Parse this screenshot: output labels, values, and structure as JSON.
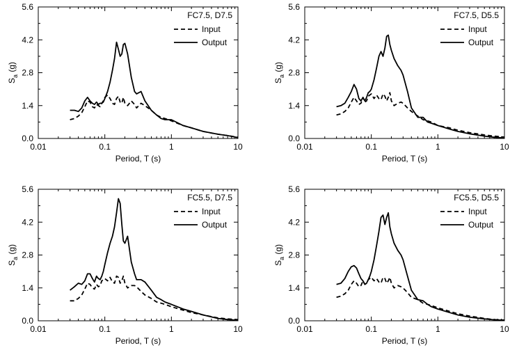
{
  "chart_data": [
    {
      "type": "line",
      "title": "",
      "xlabel": "Period, T (s)",
      "ylabel_main": "S",
      "ylabel_sub": "a",
      "ylabel_unit": "(g)",
      "xscale": "log",
      "xlim": [
        0.01,
        10
      ],
      "ylim": [
        0,
        5.6
      ],
      "xticks": [
        "0.01",
        "0.1",
        "1",
        "10"
      ],
      "yticks": [
        "0.0",
        "1.4",
        "2.8",
        "4.2",
        "5.6"
      ],
      "legend_title": "FC7.5, D7.5",
      "legend_placement": "top-right",
      "grid": false,
      "series": [
        {
          "name": "Input",
          "style": "dashed",
          "x": [
            0.03,
            0.035,
            0.04,
            0.045,
            0.05,
            0.055,
            0.06,
            0.065,
            0.07,
            0.075,
            0.08,
            0.085,
            0.09,
            0.095,
            0.1,
            0.11,
            0.12,
            0.13,
            0.14,
            0.15,
            0.16,
            0.17,
            0.18,
            0.19,
            0.2,
            0.22,
            0.25,
            0.28,
            0.3,
            0.35,
            0.4,
            0.5,
            0.6,
            0.7,
            0.8,
            1.0,
            1.5,
            2,
            3,
            5,
            7,
            10
          ],
          "y": [
            0.8,
            0.85,
            0.95,
            1.1,
            1.35,
            1.6,
            1.55,
            1.35,
            1.3,
            1.45,
            1.4,
            1.35,
            1.5,
            1.6,
            1.75,
            1.85,
            1.7,
            1.5,
            1.45,
            1.7,
            1.8,
            1.55,
            1.5,
            1.75,
            1.5,
            1.4,
            1.6,
            1.45,
            1.3,
            1.5,
            1.4,
            1.2,
            1.0,
            0.9,
            0.85,
            0.75,
            0.55,
            0.45,
            0.3,
            0.18,
            0.12,
            0.05
          ]
        },
        {
          "name": "Output",
          "style": "solid",
          "x": [
            0.03,
            0.035,
            0.04,
            0.045,
            0.05,
            0.055,
            0.06,
            0.065,
            0.07,
            0.075,
            0.08,
            0.085,
            0.09,
            0.095,
            0.1,
            0.11,
            0.12,
            0.13,
            0.14,
            0.15,
            0.16,
            0.17,
            0.18,
            0.19,
            0.2,
            0.22,
            0.25,
            0.28,
            0.3,
            0.35,
            0.4,
            0.5,
            0.6,
            0.7,
            0.8,
            1.0,
            1.5,
            2,
            3,
            5,
            7,
            10
          ],
          "y": [
            1.2,
            1.2,
            1.15,
            1.3,
            1.6,
            1.75,
            1.6,
            1.5,
            1.45,
            1.55,
            1.45,
            1.5,
            1.5,
            1.55,
            1.7,
            2.0,
            2.4,
            2.9,
            3.4,
            4.1,
            3.8,
            3.5,
            3.6,
            4.0,
            4.05,
            3.6,
            2.6,
            2.0,
            1.9,
            2.0,
            1.6,
            1.2,
            1.0,
            0.85,
            0.8,
            0.8,
            0.55,
            0.45,
            0.3,
            0.18,
            0.12,
            0.04
          ]
        }
      ]
    },
    {
      "type": "line",
      "title": "",
      "xlabel": "Period, T (s)",
      "ylabel_main": "S",
      "ylabel_sub": "a",
      "ylabel_unit": "(g)",
      "xscale": "log",
      "xlim": [
        0.01,
        10
      ],
      "ylim": [
        0,
        5.6
      ],
      "xticks": [
        "0.01",
        "0.1",
        "1",
        "10"
      ],
      "yticks": [
        "0.0",
        "1.4",
        "2.8",
        "4.2",
        "5.6"
      ],
      "legend_title": "FC7.5, D5.5",
      "legend_placement": "top-right",
      "grid": false,
      "series": [
        {
          "name": "Input",
          "style": "dashed",
          "x": [
            0.03,
            0.035,
            0.04,
            0.045,
            0.05,
            0.055,
            0.06,
            0.065,
            0.07,
            0.075,
            0.08,
            0.085,
            0.09,
            0.095,
            0.1,
            0.11,
            0.12,
            0.13,
            0.14,
            0.15,
            0.16,
            0.17,
            0.18,
            0.19,
            0.2,
            0.22,
            0.25,
            0.28,
            0.3,
            0.35,
            0.4,
            0.5,
            0.6,
            0.7,
            0.8,
            1.0,
            1.5,
            2,
            3,
            5,
            7,
            10
          ],
          "y": [
            1.0,
            1.05,
            1.15,
            1.3,
            1.55,
            1.75,
            1.6,
            1.45,
            1.5,
            1.75,
            1.55,
            1.6,
            1.8,
            1.85,
            1.9,
            1.7,
            1.85,
            1.7,
            1.65,
            1.9,
            1.8,
            1.6,
            1.75,
            1.95,
            1.6,
            1.4,
            1.5,
            1.55,
            1.5,
            1.3,
            1.15,
            0.95,
            0.8,
            0.75,
            0.7,
            0.55,
            0.45,
            0.35,
            0.25,
            0.15,
            0.1,
            0.06
          ]
        },
        {
          "name": "Output",
          "style": "solid",
          "x": [
            0.03,
            0.035,
            0.04,
            0.045,
            0.05,
            0.055,
            0.06,
            0.065,
            0.07,
            0.075,
            0.08,
            0.085,
            0.09,
            0.095,
            0.1,
            0.11,
            0.12,
            0.13,
            0.14,
            0.15,
            0.16,
            0.17,
            0.18,
            0.19,
            0.2,
            0.22,
            0.25,
            0.28,
            0.3,
            0.35,
            0.4,
            0.5,
            0.6,
            0.7,
            0.8,
            1.0,
            1.5,
            2,
            3,
            5,
            7,
            10
          ],
          "y": [
            1.35,
            1.4,
            1.5,
            1.75,
            2.0,
            2.3,
            2.1,
            1.7,
            1.6,
            1.75,
            1.6,
            1.75,
            1.95,
            2.0,
            2.1,
            2.5,
            3.0,
            3.5,
            3.7,
            3.5,
            3.85,
            4.35,
            4.4,
            4.0,
            3.75,
            3.4,
            3.1,
            2.9,
            2.7,
            2.0,
            1.3,
            0.9,
            0.9,
            0.7,
            0.65,
            0.55,
            0.4,
            0.3,
            0.2,
            0.1,
            0.05,
            0.02
          ]
        }
      ]
    },
    {
      "type": "line",
      "title": "",
      "xlabel": "Period, T (s)",
      "ylabel_main": "S",
      "ylabel_sub": "a",
      "ylabel_unit": "(g)",
      "xscale": "log",
      "xlim": [
        0.01,
        10
      ],
      "ylim": [
        0,
        5.6
      ],
      "xticks": [
        "0.01",
        "0.1",
        "1",
        "10"
      ],
      "yticks": [
        "0.0",
        "1.4",
        "2.8",
        "4.2",
        "5.6"
      ],
      "legend_title": "FC5.5, D7.5",
      "legend_placement": "top-right",
      "grid": false,
      "series": [
        {
          "name": "Input",
          "style": "dashed",
          "x": [
            0.03,
            0.035,
            0.04,
            0.045,
            0.05,
            0.055,
            0.06,
            0.065,
            0.07,
            0.075,
            0.08,
            0.085,
            0.09,
            0.095,
            0.1,
            0.11,
            0.12,
            0.13,
            0.14,
            0.15,
            0.16,
            0.17,
            0.18,
            0.19,
            0.2,
            0.22,
            0.25,
            0.28,
            0.3,
            0.35,
            0.4,
            0.5,
            0.6,
            0.7,
            0.8,
            1.0,
            1.5,
            2,
            3,
            5,
            7,
            10
          ],
          "y": [
            0.85,
            0.85,
            0.95,
            1.1,
            1.35,
            1.6,
            1.55,
            1.4,
            1.35,
            1.55,
            1.45,
            1.5,
            1.7,
            1.75,
            1.8,
            1.7,
            1.85,
            1.65,
            1.6,
            1.9,
            1.85,
            1.6,
            1.7,
            1.9,
            1.6,
            1.4,
            1.5,
            1.5,
            1.45,
            1.25,
            1.1,
            0.95,
            0.8,
            0.75,
            0.7,
            0.6,
            0.45,
            0.35,
            0.25,
            0.12,
            0.08,
            0.05
          ]
        },
        {
          "name": "Output",
          "style": "solid",
          "x": [
            0.03,
            0.035,
            0.04,
            0.045,
            0.05,
            0.055,
            0.06,
            0.065,
            0.07,
            0.075,
            0.08,
            0.085,
            0.09,
            0.095,
            0.1,
            0.11,
            0.12,
            0.13,
            0.14,
            0.15,
            0.16,
            0.17,
            0.18,
            0.19,
            0.2,
            0.22,
            0.25,
            0.28,
            0.3,
            0.35,
            0.4,
            0.5,
            0.6,
            0.7,
            0.8,
            1.0,
            1.5,
            2,
            3,
            5,
            7,
            10
          ],
          "y": [
            1.3,
            1.45,
            1.6,
            1.55,
            1.7,
            2.0,
            2.0,
            1.8,
            1.65,
            1.9,
            1.8,
            1.75,
            1.9,
            2.1,
            2.4,
            2.9,
            3.3,
            3.6,
            4.0,
            4.6,
            5.2,
            5.0,
            4.1,
            3.4,
            3.3,
            3.6,
            2.5,
            2.0,
            1.75,
            1.75,
            1.65,
            1.3,
            1.0,
            0.9,
            0.8,
            0.7,
            0.5,
            0.4,
            0.25,
            0.1,
            0.05,
            0.02
          ]
        }
      ]
    },
    {
      "type": "line",
      "title": "",
      "xlabel": "Period, T (s)",
      "ylabel_main": "S",
      "ylabel_sub": "a",
      "ylabel_unit": "(g)",
      "xscale": "log",
      "xlim": [
        0.01,
        10
      ],
      "ylim": [
        0,
        5.6
      ],
      "xticks": [
        "0.01",
        "0.1",
        "1",
        "10"
      ],
      "yticks": [
        "0.0",
        "1.4",
        "2.8",
        "4.2",
        "5.6"
      ],
      "legend_title": "FC5.5, D5.5",
      "legend_placement": "top-right",
      "grid": false,
      "series": [
        {
          "name": "Input",
          "style": "dashed",
          "x": [
            0.03,
            0.035,
            0.04,
            0.045,
            0.05,
            0.055,
            0.06,
            0.065,
            0.07,
            0.075,
            0.08,
            0.085,
            0.09,
            0.095,
            0.1,
            0.11,
            0.12,
            0.13,
            0.14,
            0.15,
            0.16,
            0.17,
            0.18,
            0.19,
            0.2,
            0.22,
            0.25,
            0.28,
            0.3,
            0.35,
            0.4,
            0.5,
            0.6,
            0.7,
            0.8,
            1.0,
            1.5,
            2,
            3,
            5,
            7,
            10
          ],
          "y": [
            1.0,
            1.05,
            1.15,
            1.3,
            1.55,
            1.7,
            1.6,
            1.45,
            1.5,
            1.7,
            1.55,
            1.6,
            1.75,
            1.8,
            1.85,
            1.7,
            1.8,
            1.65,
            1.6,
            1.85,
            1.8,
            1.6,
            1.7,
            1.85,
            1.6,
            1.4,
            1.5,
            1.45,
            1.4,
            1.2,
            1.0,
            0.9,
            0.75,
            0.7,
            0.65,
            0.55,
            0.4,
            0.3,
            0.2,
            0.1,
            0.05,
            0.03
          ]
        },
        {
          "name": "Output",
          "style": "solid",
          "x": [
            0.03,
            0.035,
            0.04,
            0.045,
            0.05,
            0.055,
            0.06,
            0.065,
            0.07,
            0.075,
            0.08,
            0.085,
            0.09,
            0.095,
            0.1,
            0.11,
            0.12,
            0.13,
            0.14,
            0.15,
            0.16,
            0.17,
            0.18,
            0.19,
            0.2,
            0.22,
            0.25,
            0.28,
            0.3,
            0.35,
            0.4,
            0.5,
            0.6,
            0.7,
            0.8,
            1.0,
            1.5,
            2,
            3,
            5,
            7,
            10
          ],
          "y": [
            1.55,
            1.6,
            1.8,
            2.1,
            2.3,
            2.35,
            2.25,
            2.0,
            1.8,
            1.7,
            1.55,
            1.6,
            1.75,
            1.9,
            2.1,
            2.6,
            3.2,
            3.8,
            4.4,
            4.5,
            4.1,
            4.4,
            4.6,
            4.0,
            3.7,
            3.3,
            3.0,
            2.8,
            2.6,
            1.9,
            1.3,
            0.9,
            0.85,
            0.7,
            0.6,
            0.5,
            0.35,
            0.25,
            0.15,
            0.08,
            0.04,
            0.02
          ]
        }
      ]
    }
  ]
}
